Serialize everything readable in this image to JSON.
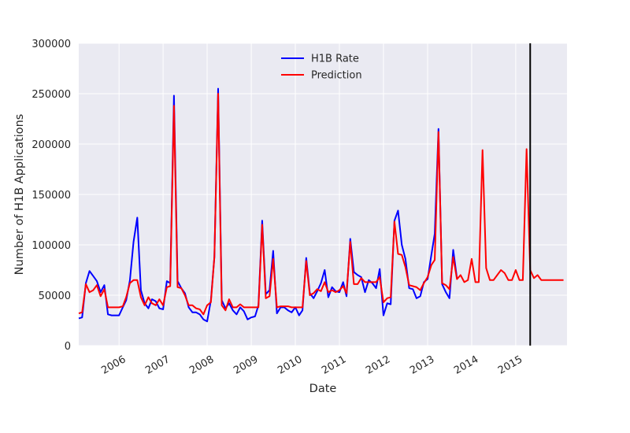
{
  "chart_data": {
    "type": "line",
    "xlabel": "Date",
    "ylabel": "Number of H1B Applications",
    "xlim": [
      "2005-02-01",
      "2016-03-01"
    ],
    "ylim": [
      0,
      300000
    ],
    "yticks": [
      0,
      50000,
      100000,
      150000,
      200000,
      250000,
      300000
    ],
    "xticks": [
      {
        "date": "2006-01-01",
        "label": "2006"
      },
      {
        "date": "2007-01-01",
        "label": "2007"
      },
      {
        "date": "2008-01-01",
        "label": "2008"
      },
      {
        "date": "2009-01-01",
        "label": "2009"
      },
      {
        "date": "2010-01-01",
        "label": "2010"
      },
      {
        "date": "2011-01-01",
        "label": "2011"
      },
      {
        "date": "2012-01-01",
        "label": "2012"
      },
      {
        "date": "2013-01-01",
        "label": "2013"
      },
      {
        "date": "2014-01-01",
        "label": "2014"
      },
      {
        "date": "2015-01-01",
        "label": "2015"
      }
    ],
    "grid": true,
    "legend_position": "top-center",
    "vline": {
      "date": "2015-05-01",
      "color": "#000000"
    },
    "series": [
      {
        "name": "H1B Rate",
        "color": "#0000ff",
        "points": [
          [
            "2005-02",
            27000
          ],
          [
            "2005-03",
            28000
          ],
          [
            "2005-04",
            62000
          ],
          [
            "2005-05",
            74000
          ],
          [
            "2005-06",
            69000
          ],
          [
            "2005-07",
            64000
          ],
          [
            "2005-08",
            53000
          ],
          [
            "2005-09",
            60000
          ],
          [
            "2005-10",
            31000
          ],
          [
            "2005-11",
            30000
          ],
          [
            "2005-12",
            30000
          ],
          [
            "2006-01",
            30000
          ],
          [
            "2006-02",
            38000
          ],
          [
            "2006-03",
            45000
          ],
          [
            "2006-04",
            65000
          ],
          [
            "2006-05",
            103000
          ],
          [
            "2006-06",
            127000
          ],
          [
            "2006-07",
            55000
          ],
          [
            "2006-08",
            42000
          ],
          [
            "2006-09",
            37000
          ],
          [
            "2006-10",
            46000
          ],
          [
            "2006-11",
            44000
          ],
          [
            "2006-12",
            37000
          ],
          [
            "2007-01",
            36000
          ],
          [
            "2007-02",
            64000
          ],
          [
            "2007-03",
            62000
          ],
          [
            "2007-04",
            248000
          ],
          [
            "2007-05",
            64000
          ],
          [
            "2007-06",
            57000
          ],
          [
            "2007-07",
            52000
          ],
          [
            "2007-08",
            38000
          ],
          [
            "2007-09",
            33000
          ],
          [
            "2007-10",
            33000
          ],
          [
            "2007-11",
            31000
          ],
          [
            "2007-12",
            26000
          ],
          [
            "2008-01",
            24000
          ],
          [
            "2008-02",
            45000
          ],
          [
            "2008-03",
            88000
          ],
          [
            "2008-04",
            255000
          ],
          [
            "2008-05",
            45000
          ],
          [
            "2008-06",
            37000
          ],
          [
            "2008-07",
            42000
          ],
          [
            "2008-08",
            35000
          ],
          [
            "2008-09",
            31000
          ],
          [
            "2008-10",
            38000
          ],
          [
            "2008-11",
            34000
          ],
          [
            "2008-12",
            26000
          ],
          [
            "2009-01",
            28000
          ],
          [
            "2009-02",
            29000
          ],
          [
            "2009-03",
            40000
          ],
          [
            "2009-04",
            124000
          ],
          [
            "2009-05",
            51000
          ],
          [
            "2009-06",
            55000
          ],
          [
            "2009-07",
            94000
          ],
          [
            "2009-08",
            32000
          ],
          [
            "2009-09",
            38000
          ],
          [
            "2009-10",
            38000
          ],
          [
            "2009-11",
            35000
          ],
          [
            "2009-12",
            33000
          ],
          [
            "2010-01",
            38000
          ],
          [
            "2010-02",
            30000
          ],
          [
            "2010-03",
            35000
          ],
          [
            "2010-04",
            87000
          ],
          [
            "2010-05",
            52000
          ],
          [
            "2010-06",
            47000
          ],
          [
            "2010-07",
            54000
          ],
          [
            "2010-08",
            62000
          ],
          [
            "2010-09",
            75000
          ],
          [
            "2010-10",
            48000
          ],
          [
            "2010-11",
            58000
          ],
          [
            "2010-12",
            54000
          ],
          [
            "2011-01",
            53000
          ],
          [
            "2011-02",
            63000
          ],
          [
            "2011-03",
            49000
          ],
          [
            "2011-04",
            106000
          ],
          [
            "2011-05",
            73000
          ],
          [
            "2011-06",
            70000
          ],
          [
            "2011-07",
            68000
          ],
          [
            "2011-08",
            53000
          ],
          [
            "2011-09",
            65000
          ],
          [
            "2011-10",
            62000
          ],
          [
            "2011-11",
            57000
          ],
          [
            "2011-12",
            76000
          ],
          [
            "2012-01",
            30000
          ],
          [
            "2012-02",
            42000
          ],
          [
            "2012-03",
            41000
          ],
          [
            "2012-04",
            124000
          ],
          [
            "2012-05",
            134000
          ],
          [
            "2012-06",
            100000
          ],
          [
            "2012-07",
            86000
          ],
          [
            "2012-08",
            57000
          ],
          [
            "2012-09",
            56000
          ],
          [
            "2012-10",
            47000
          ],
          [
            "2012-11",
            49000
          ],
          [
            "2012-12",
            63000
          ],
          [
            "2013-01",
            66000
          ],
          [
            "2013-02",
            90000
          ],
          [
            "2013-03",
            111000
          ],
          [
            "2013-04",
            215000
          ],
          [
            "2013-05",
            61000
          ],
          [
            "2013-06",
            53000
          ],
          [
            "2013-07",
            47000
          ],
          [
            "2013-08",
            95000
          ],
          [
            "2013-09",
            67000
          ]
        ]
      },
      {
        "name": "Prediction",
        "color": "#ff0000",
        "points": [
          [
            "2005-02",
            32000
          ],
          [
            "2005-03",
            33000
          ],
          [
            "2005-04",
            61000
          ],
          [
            "2005-05",
            53000
          ],
          [
            "2005-06",
            55000
          ],
          [
            "2005-07",
            60000
          ],
          [
            "2005-08",
            49000
          ],
          [
            "2005-09",
            56000
          ],
          [
            "2005-10",
            38000
          ],
          [
            "2005-11",
            38000
          ],
          [
            "2005-12",
            38000
          ],
          [
            "2006-01",
            38000
          ],
          [
            "2006-02",
            39000
          ],
          [
            "2006-03",
            48000
          ],
          [
            "2006-04",
            62000
          ],
          [
            "2006-05",
            65000
          ],
          [
            "2006-06",
            65000
          ],
          [
            "2006-07",
            48000
          ],
          [
            "2006-08",
            40000
          ],
          [
            "2006-09",
            48000
          ],
          [
            "2006-10",
            42000
          ],
          [
            "2006-11",
            40000
          ],
          [
            "2006-12",
            46000
          ],
          [
            "2007-01",
            40000
          ],
          [
            "2007-02",
            58000
          ],
          [
            "2007-03",
            59000
          ],
          [
            "2007-04",
            238000
          ],
          [
            "2007-05",
            58000
          ],
          [
            "2007-06",
            57000
          ],
          [
            "2007-07",
            50000
          ],
          [
            "2007-08",
            40000
          ],
          [
            "2007-09",
            40000
          ],
          [
            "2007-10",
            37000
          ],
          [
            "2007-11",
            36000
          ],
          [
            "2007-12",
            31000
          ],
          [
            "2008-01",
            40000
          ],
          [
            "2008-02",
            43000
          ],
          [
            "2008-03",
            88000
          ],
          [
            "2008-04",
            250000
          ],
          [
            "2008-05",
            40000
          ],
          [
            "2008-06",
            35000
          ],
          [
            "2008-07",
            46000
          ],
          [
            "2008-08",
            38000
          ],
          [
            "2008-09",
            38000
          ],
          [
            "2008-10",
            41000
          ],
          [
            "2008-11",
            38000
          ],
          [
            "2008-12",
            38000
          ],
          [
            "2009-01",
            38000
          ],
          [
            "2009-02",
            38000
          ],
          [
            "2009-03",
            38000
          ],
          [
            "2009-04",
            120000
          ],
          [
            "2009-05",
            47000
          ],
          [
            "2009-06",
            49000
          ],
          [
            "2009-07",
            86000
          ],
          [
            "2009-08",
            38000
          ],
          [
            "2009-09",
            39000
          ],
          [
            "2009-10",
            39000
          ],
          [
            "2009-11",
            39000
          ],
          [
            "2009-12",
            38000
          ],
          [
            "2010-01",
            38000
          ],
          [
            "2010-02",
            38000
          ],
          [
            "2010-03",
            38000
          ],
          [
            "2010-04",
            84000
          ],
          [
            "2010-05",
            50000
          ],
          [
            "2010-06",
            52000
          ],
          [
            "2010-07",
            56000
          ],
          [
            "2010-08",
            54000
          ],
          [
            "2010-09",
            63000
          ],
          [
            "2010-10",
            53000
          ],
          [
            "2010-11",
            55000
          ],
          [
            "2010-12",
            53000
          ],
          [
            "2011-01",
            55000
          ],
          [
            "2011-02",
            59000
          ],
          [
            "2011-03",
            52000
          ],
          [
            "2011-04",
            103000
          ],
          [
            "2011-05",
            61000
          ],
          [
            "2011-06",
            61000
          ],
          [
            "2011-07",
            67000
          ],
          [
            "2011-08",
            63000
          ],
          [
            "2011-09",
            63000
          ],
          [
            "2011-10",
            63000
          ],
          [
            "2011-11",
            63000
          ],
          [
            "2011-12",
            68000
          ],
          [
            "2012-01",
            43000
          ],
          [
            "2012-02",
            47000
          ],
          [
            "2012-03",
            48000
          ],
          [
            "2012-04",
            123000
          ],
          [
            "2012-05",
            91000
          ],
          [
            "2012-06",
            90000
          ],
          [
            "2012-07",
            78000
          ],
          [
            "2012-08",
            60000
          ],
          [
            "2012-09",
            59000
          ],
          [
            "2012-10",
            58000
          ],
          [
            "2012-11",
            55000
          ],
          [
            "2012-12",
            62000
          ],
          [
            "2013-01",
            68000
          ],
          [
            "2013-02",
            80000
          ],
          [
            "2013-03",
            85000
          ],
          [
            "2013-04",
            212000
          ],
          [
            "2013-05",
            62000
          ],
          [
            "2013-06",
            60000
          ],
          [
            "2013-07",
            56000
          ],
          [
            "2013-08",
            88000
          ],
          [
            "2013-09",
            66000
          ],
          [
            "2013-10",
            70000
          ],
          [
            "2013-11",
            63000
          ],
          [
            "2013-12",
            65000
          ],
          [
            "2014-01",
            86000
          ],
          [
            "2014-02",
            63000
          ],
          [
            "2014-03",
            63000
          ],
          [
            "2014-04",
            194000
          ],
          [
            "2014-05",
            77000
          ],
          [
            "2014-06",
            65000
          ],
          [
            "2014-07",
            65000
          ],
          [
            "2014-08",
            70000
          ],
          [
            "2014-09",
            75000
          ],
          [
            "2014-10",
            72000
          ],
          [
            "2014-11",
            65000
          ],
          [
            "2014-12",
            65000
          ],
          [
            "2015-01",
            75000
          ],
          [
            "2015-02",
            65000
          ],
          [
            "2015-03",
            65000
          ],
          [
            "2015-04",
            195000
          ],
          [
            "2015-05",
            75000
          ],
          [
            "2015-06",
            67000
          ],
          [
            "2015-07",
            70000
          ],
          [
            "2015-08",
            65000
          ],
          [
            "2015-09",
            65000
          ],
          [
            "2015-10",
            65000
          ],
          [
            "2015-11",
            65000
          ],
          [
            "2015-12",
            65000
          ],
          [
            "2016-01",
            65000
          ],
          [
            "2016-02",
            65000
          ]
        ]
      }
    ]
  }
}
